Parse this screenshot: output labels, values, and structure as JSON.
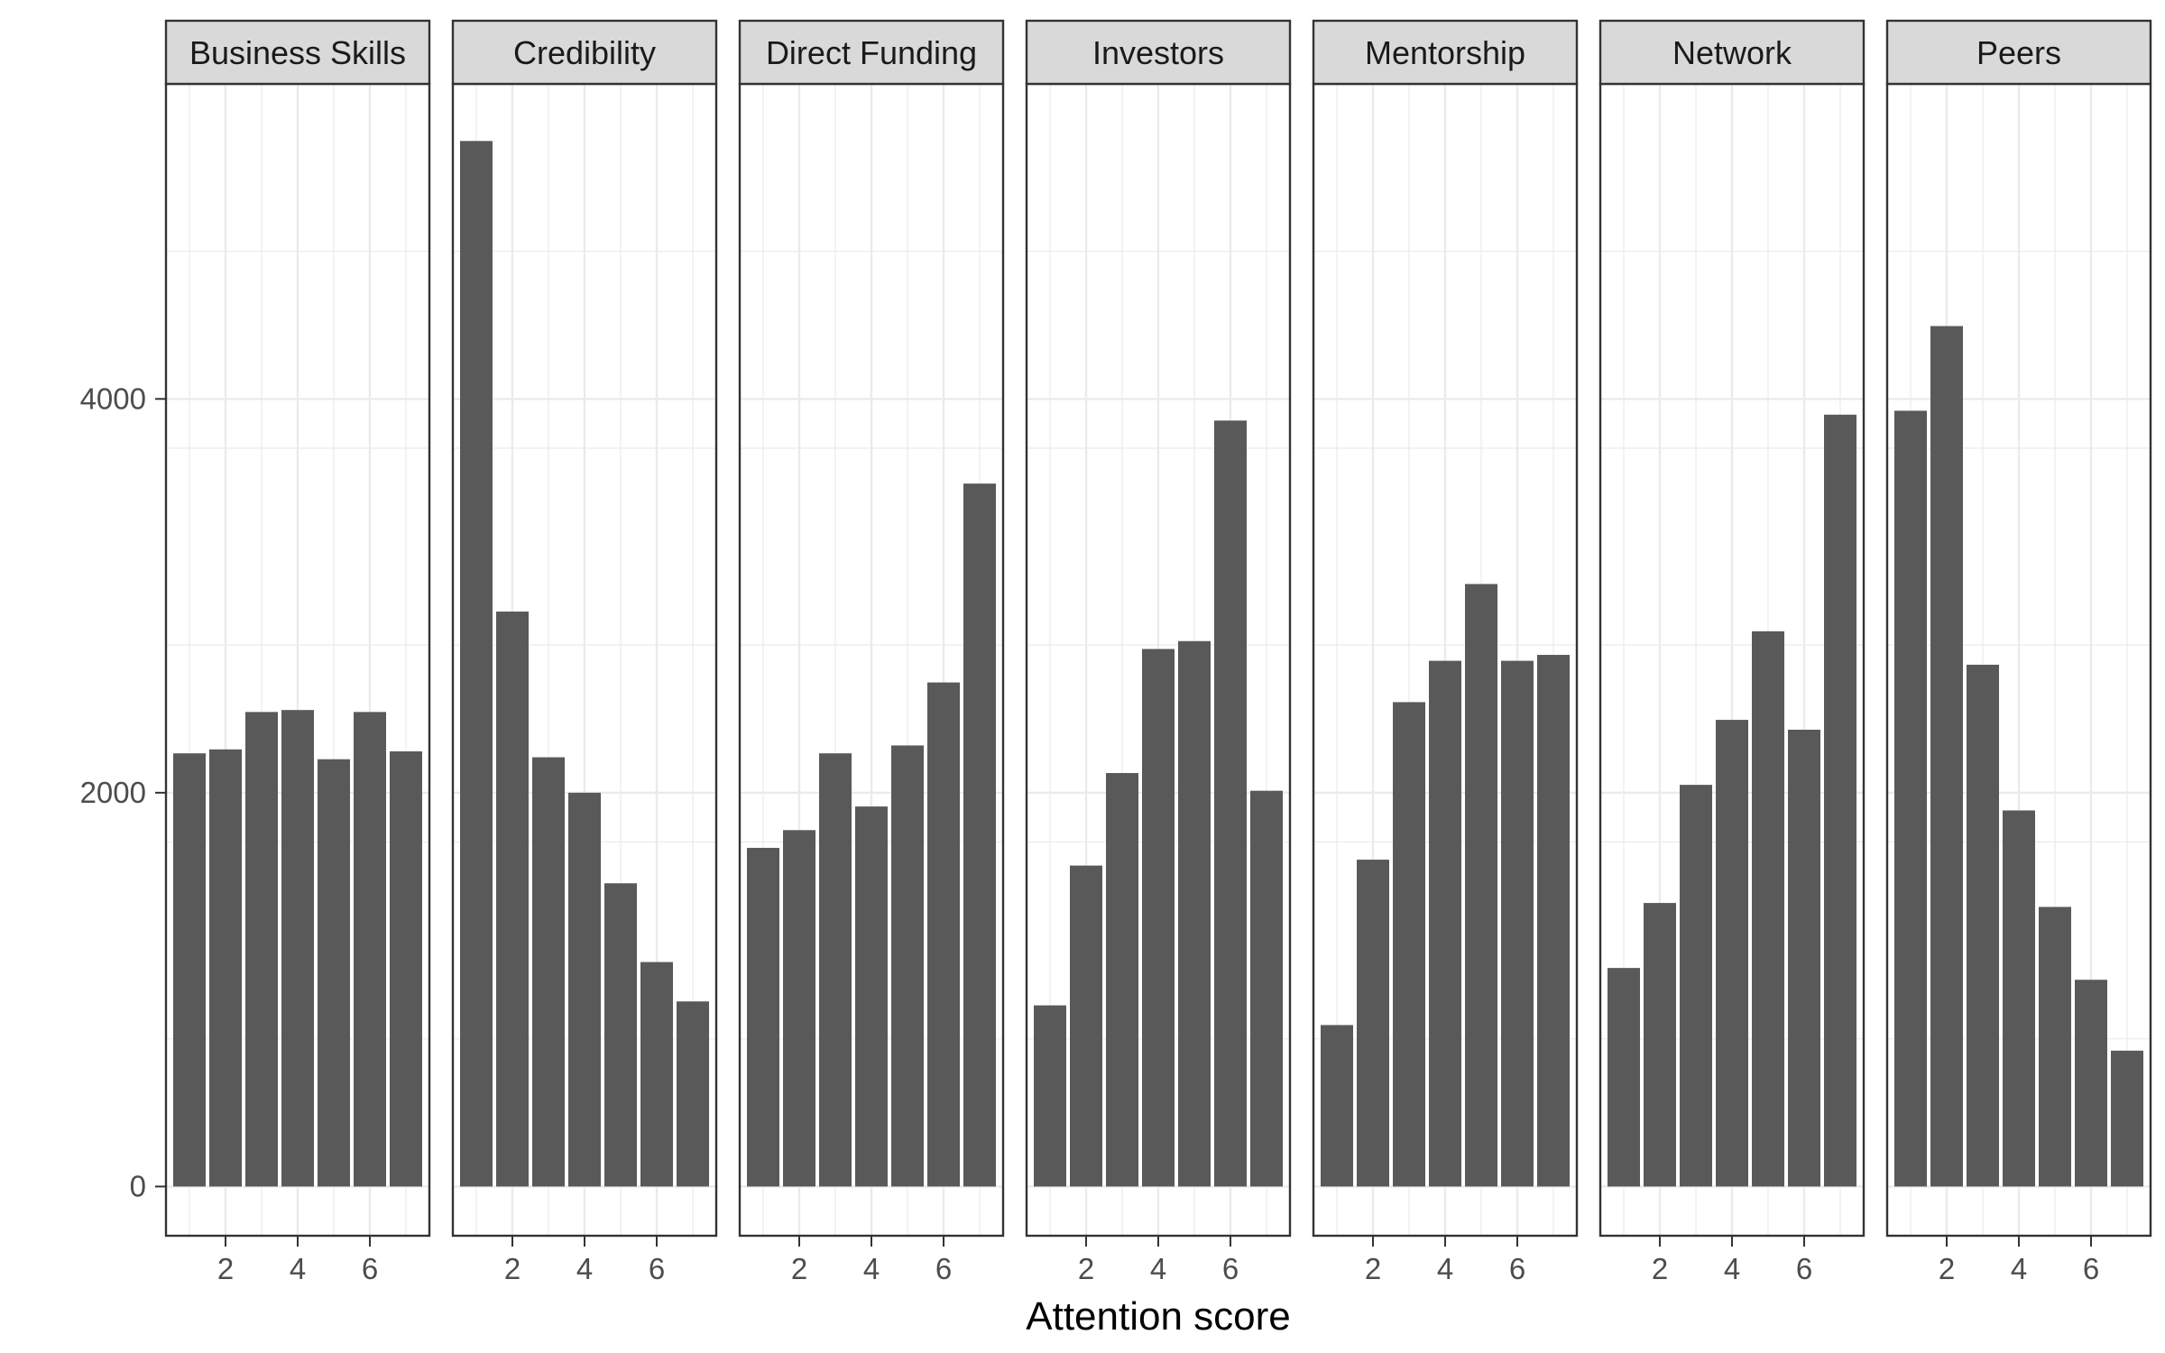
{
  "chart_data": {
    "type": "bar",
    "layout": "faceted",
    "xlabel": "Attention score",
    "ylabel": "",
    "x": [
      1,
      2,
      3,
      4,
      5,
      6,
      7
    ],
    "x_ticks": [
      2,
      4,
      6
    ],
    "y_ticks": [
      0,
      2000,
      4000
    ],
    "ylim": [
      -250,
      5600
    ],
    "grid": true,
    "colors": {
      "bar": "#595959",
      "panel_border": "#333333",
      "grid": "#ebebeb",
      "strip_fill": "#d9d9d9"
    },
    "facets": [
      {
        "label": "Business Skills",
        "values": [
          2200,
          2220,
          2410,
          2420,
          2170,
          2410,
          2210
        ]
      },
      {
        "label": "Credibility",
        "values": [
          5310,
          2920,
          2180,
          2000,
          1540,
          1140,
          940
        ]
      },
      {
        "label": "Direct Funding",
        "values": [
          1720,
          1810,
          2200,
          1930,
          2240,
          2560,
          3570
        ]
      },
      {
        "label": "Investors",
        "values": [
          920,
          1630,
          2100,
          2730,
          2770,
          3890,
          2010
        ]
      },
      {
        "label": "Mentorship",
        "values": [
          820,
          1660,
          2460,
          2670,
          3060,
          2670,
          2700
        ]
      },
      {
        "label": "Network",
        "values": [
          1110,
          1440,
          2040,
          2370,
          2820,
          2320,
          3920
        ]
      },
      {
        "label": "Peers",
        "values": [
          3940,
          4370,
          2650,
          1910,
          1420,
          1050,
          690
        ]
      }
    ]
  }
}
